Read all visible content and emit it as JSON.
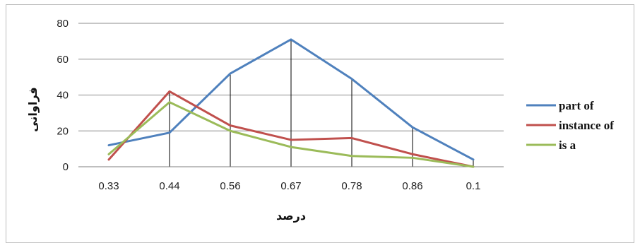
{
  "chart_data": {
    "type": "line",
    "title": "",
    "xlabel": "درصد",
    "ylabel": "فراوانی",
    "categories": [
      "0.33",
      "0.44",
      "0.56",
      "0.67",
      "0.78",
      "0.86",
      "0.1"
    ],
    "ylim": [
      0,
      80
    ],
    "yticks": [
      0,
      20,
      40,
      60,
      80
    ],
    "ytick_labels": [
      "0",
      "20",
      "40",
      "60",
      "80"
    ],
    "grid": "horizontal",
    "legend_position": "right",
    "series": [
      {
        "name": "part of",
        "color": "#4f81bd",
        "values": [
          12,
          19,
          52,
          71,
          49,
          22,
          4
        ]
      },
      {
        "name": "instance of",
        "color": "#c0504d",
        "values": [
          4,
          42,
          23,
          15,
          16,
          7,
          0
        ]
      },
      {
        "name": "is a",
        "color": "#9bbb59",
        "values": [
          7,
          36,
          20,
          11,
          6,
          5,
          0
        ]
      }
    ]
  }
}
